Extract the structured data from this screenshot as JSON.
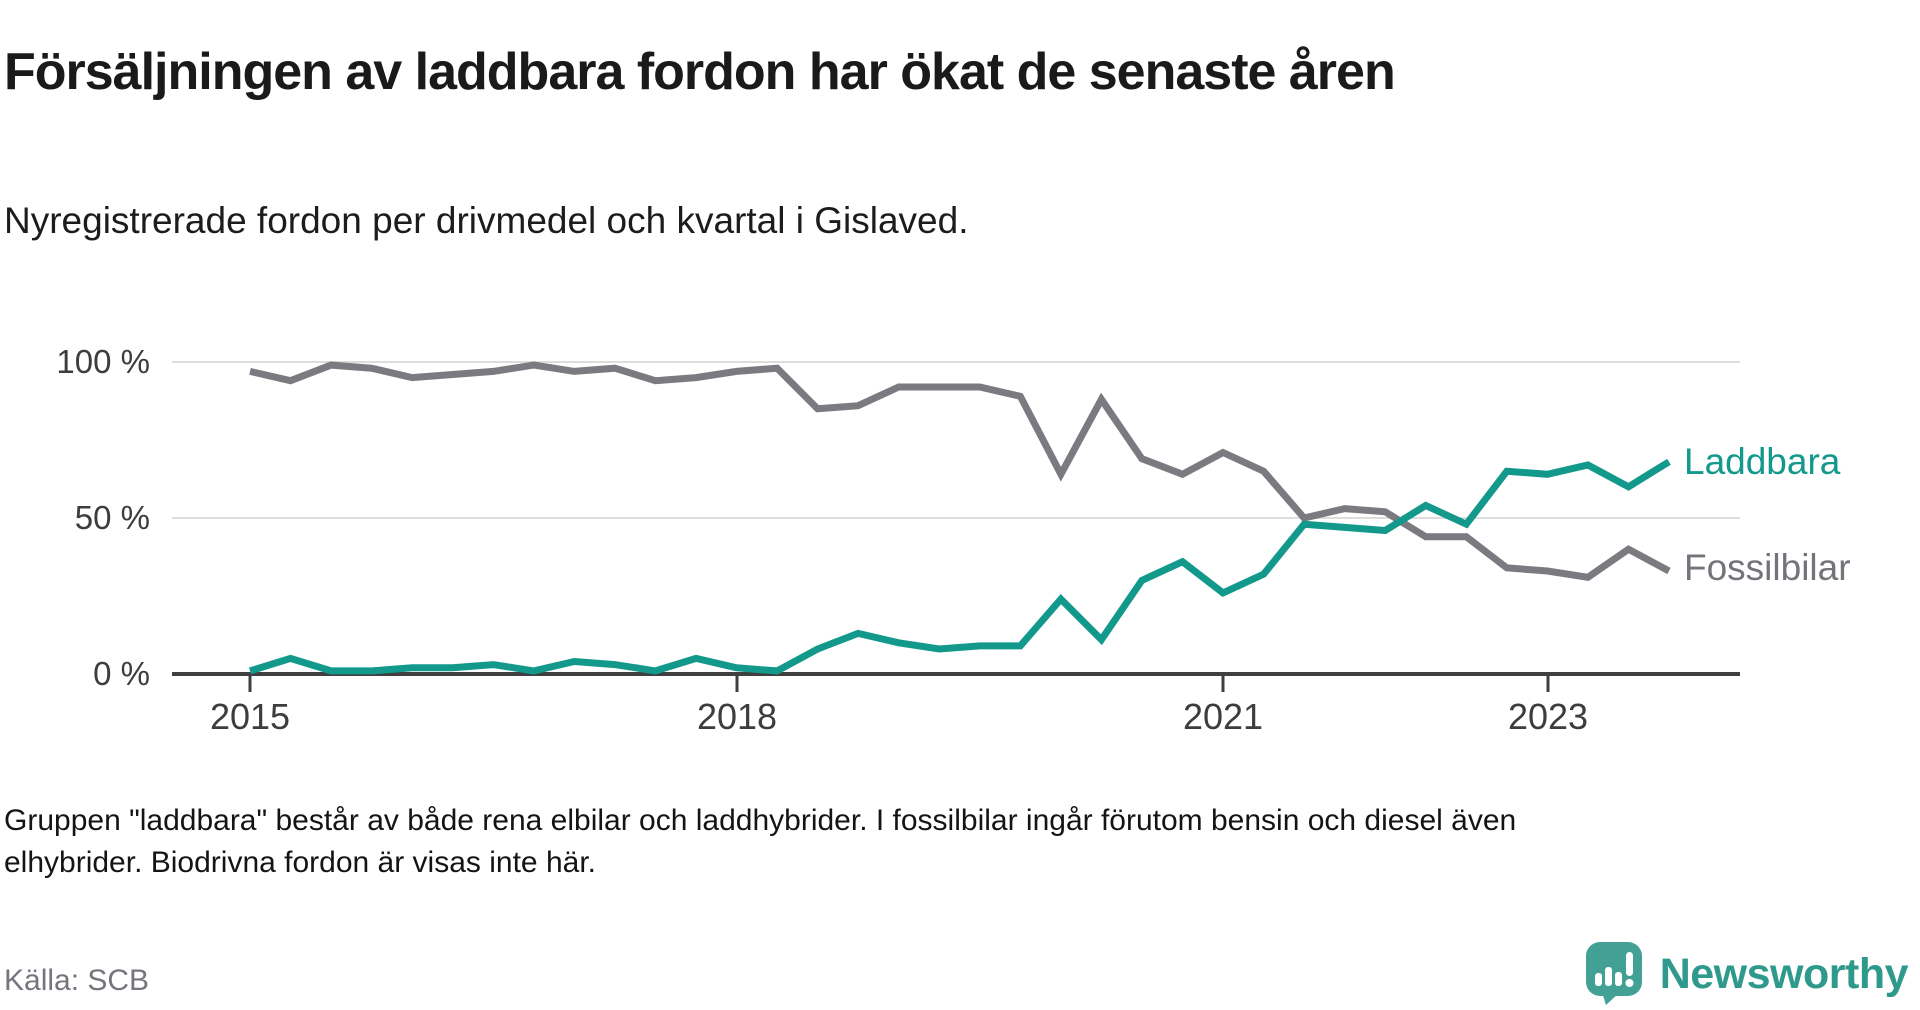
{
  "title": "Försäljningen av laddbara fordon har ökat de senaste åren",
  "subtitle": "Nyregistrerade fordon per drivmedel och kvartal i Gislaved.",
  "footnote": {
    "line1": "Gruppen \"laddbara\" består av både rena elbilar och laddhybrider. I fossilbilar ingår förutom bensin och diesel även",
    "line2": "elhybrider. Biodrivna fordon är visas inte här."
  },
  "source": "Källa: SCB",
  "logo": {
    "brand": "Newsworthy",
    "icon": "speech-bubble-bar-chart-exclamation",
    "color": "#43a094",
    "text_color": "#2f9a8c"
  },
  "colors": {
    "laddbara": "#12998c",
    "fossilbilar": "#7a7a80",
    "grid": "#dddddd",
    "axis": "#3f3f3f",
    "text_dark": "#1a1a1a",
    "tick_text": "#3d3d3d",
    "muted_text": "#76757d"
  },
  "chart_data": {
    "type": "line",
    "title": "Försäljningen av laddbara fordon har ökat de senaste åren",
    "subtitle": "Nyregistrerade fordon per drivmedel och kvartal i Gislaved.",
    "unit": "%",
    "ylim": [
      0,
      100
    ],
    "grid": "horizontal",
    "legend_position": "right-end-of-line",
    "y_tick_labels": [
      "100 %",
      "50 %",
      "0 %"
    ],
    "x_tick_labels": [
      "2015",
      "2018",
      "2021",
      "2023"
    ],
    "x": [
      "2015 Q1",
      "2015 Q2",
      "2015 Q3",
      "2015 Q4",
      "2016 Q1",
      "2016 Q2",
      "2016 Q3",
      "2016 Q4",
      "2017 Q1",
      "2017 Q2",
      "2017 Q3",
      "2017 Q4",
      "2018 Q1",
      "2018 Q2",
      "2018 Q3",
      "2018 Q4",
      "2019 Q1",
      "2019 Q2",
      "2019 Q3",
      "2019 Q4",
      "2020 Q1",
      "2020 Q2",
      "2020 Q3",
      "2020 Q4",
      "2021 Q1",
      "2021 Q2",
      "2021 Q3",
      "2021 Q4",
      "2022 Q1",
      "2022 Q2",
      "2022 Q3",
      "2022 Q4",
      "2023 Q1",
      "2023 Q2",
      "2023 Q3",
      "2023 Q4"
    ],
    "series": [
      {
        "name": "Laddbara",
        "color": "#12998c",
        "values": [
          1,
          5,
          1,
          1,
          2,
          2,
          3,
          1,
          4,
          3,
          1,
          5,
          2,
          1,
          8,
          13,
          10,
          8,
          9,
          9,
          24,
          11,
          30,
          36,
          26,
          32,
          48,
          47,
          46,
          54,
          48,
          65,
          64,
          67,
          60,
          68
        ]
      },
      {
        "name": "Fossilbilar",
        "color": "#7a7a80",
        "values": [
          97,
          94,
          99,
          98,
          95,
          96,
          97,
          99,
          97,
          98,
          94,
          95,
          97,
          98,
          85,
          86,
          92,
          92,
          92,
          89,
          64,
          88,
          69,
          64,
          71,
          65,
          50,
          53,
          52,
          44,
          44,
          34,
          33,
          31,
          40,
          33
        ]
      }
    ]
  }
}
